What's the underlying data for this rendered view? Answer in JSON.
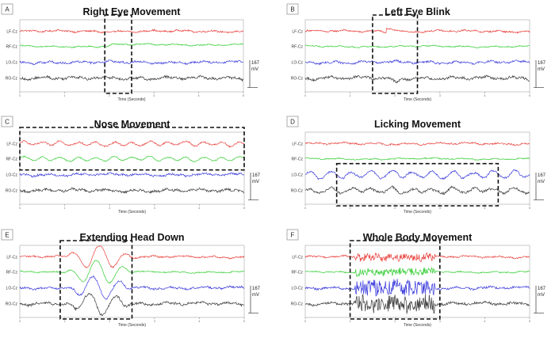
{
  "figure": {
    "panels": [
      {
        "letter": "A",
        "title": "Right Eye Movement",
        "xlabel": "Time (Seconds)"
      },
      {
        "letter": "B",
        "title": "Left Eye Blink",
        "xlabel": "Time (Seconds)"
      },
      {
        "letter": "C",
        "title": "Nose Movement",
        "xlabel": "Time (Seconds)"
      },
      {
        "letter": "D",
        "title": "Licking Movement",
        "xlabel": "Time (Seconds)"
      },
      {
        "letter": "E",
        "title": "Extending Head Down",
        "xlabel": "Time (Seconds)"
      },
      {
        "letter": "F",
        "title": "Whole Body Movement",
        "xlabel": "Time (Seconds)"
      }
    ],
    "scale_bar": {
      "value": "167",
      "unit": "mV"
    }
  },
  "colors": {
    "LF-Cz": "#e8413c",
    "RF-Cz": "#33cc33",
    "LO-Cz": "#3b3bdc",
    "RO-Cz": "#3a3a3a",
    "box": "#111111"
  },
  "chart_data": [
    {
      "panel": "A",
      "type": "line",
      "title": "Right Eye Movement",
      "xlabel": "Time (Seconds)",
      "x_ticks": [
        "0",
        "1",
        "2",
        "3",
        "4",
        "5"
      ],
      "xlim": [
        0,
        5
      ],
      "series": [
        {
          "name": "LF-Cz"
        },
        {
          "name": "RF-Cz"
        },
        {
          "name": "LO-Cz"
        },
        {
          "name": "RO-Cz"
        }
      ],
      "highlight": {
        "x": [
          1.9,
          2.5
        ],
        "channels": [
          "LF-Cz",
          "RO-Cz"
        ]
      },
      "events": [
        {
          "channel": "RF-Cz",
          "kind": "step-up",
          "time": 2.0,
          "amplitude": 0.5
        },
        {
          "channel": "RO-Cz",
          "kind": "spike-up",
          "time": 2.1,
          "amplitude": 0.5
        }
      ]
    },
    {
      "panel": "B",
      "type": "line",
      "title": "Left Eye Blink",
      "xlabel": "Time (Seconds)",
      "x_ticks": [
        "0",
        "1",
        "2",
        "3",
        "4",
        "5"
      ],
      "xlim": [
        0,
        5
      ],
      "series": [
        {
          "name": "LF-Cz"
        },
        {
          "name": "RF-Cz"
        },
        {
          "name": "LO-Cz"
        },
        {
          "name": "RO-Cz"
        }
      ],
      "highlight": {
        "x": [
          1.5,
          2.5
        ],
        "channels": [
          "LF-Cz",
          "RO-Cz"
        ]
      },
      "events": [
        {
          "channel": "LF-Cz",
          "kind": "spike-up-decay",
          "time": 1.8,
          "amplitude": 1.2
        },
        {
          "channel": "RO-Cz",
          "kind": "dip",
          "time": 2.0,
          "amplitude": 1.1
        }
      ]
    },
    {
      "panel": "C",
      "type": "line",
      "title": "Nose Movement",
      "xlabel": "Time (Seconds)",
      "x_ticks": [
        "0",
        "1",
        "2",
        "3",
        "4",
        "5"
      ],
      "xlim": [
        0,
        5
      ],
      "series": [
        {
          "name": "LF-Cz"
        },
        {
          "name": "RF-Cz"
        },
        {
          "name": "LO-Cz"
        },
        {
          "name": "RO-Cz"
        }
      ],
      "highlight": {
        "x": [
          0,
          5
        ],
        "channels": [
          "LF-Cz",
          "RF-Cz"
        ]
      },
      "events": [
        {
          "channel": "LF-Cz",
          "kind": "oscillation",
          "frequency": 2.5,
          "amplitude": 0.5
        },
        {
          "channel": "RF-Cz",
          "kind": "oscillation",
          "frequency": 2.5,
          "amplitude": 0.5
        }
      ]
    },
    {
      "panel": "D",
      "type": "line",
      "title": "Licking Movement",
      "xlabel": "Time (Seconds)",
      "x_ticks": [
        "0",
        "1",
        "2",
        "3",
        "4",
        "5"
      ],
      "xlim": [
        0,
        5
      ],
      "series": [
        {
          "name": "LF-Cz"
        },
        {
          "name": "RF-Cz"
        },
        {
          "name": "LO-Cz"
        },
        {
          "name": "RO-Cz"
        }
      ],
      "highlight": {
        "x": [
          0.7,
          4.3
        ],
        "channels": [
          "LO-Cz",
          "RO-Cz"
        ]
      },
      "events": [
        {
          "channel": "LO-Cz",
          "kind": "oscillation",
          "frequency": 2.2,
          "amplitude": 0.9
        },
        {
          "channel": "RO-Cz",
          "kind": "oscillation",
          "frequency": 2.2,
          "amplitude": 0.6
        }
      ]
    },
    {
      "panel": "E",
      "type": "line",
      "title": "Extending Head Down",
      "xlabel": "Time (Seconds)",
      "x_ticks": [
        "0",
        "1",
        "2",
        "3",
        "4",
        "5"
      ],
      "xlim": [
        0,
        5
      ],
      "series": [
        {
          "name": "LF-Cz"
        },
        {
          "name": "RF-Cz"
        },
        {
          "name": "LO-Cz"
        },
        {
          "name": "RO-Cz"
        }
      ],
      "highlight": {
        "x": [
          0.9,
          2.5
        ],
        "channels": [
          "LF-Cz",
          "RO-Cz"
        ]
      },
      "events": [
        {
          "channel": "all",
          "kind": "large-artifact",
          "time": [
            1.0,
            2.5
          ],
          "amplitude": 3.5
        }
      ]
    },
    {
      "panel": "F",
      "type": "line",
      "title": "Whole Body Movement",
      "xlabel": "Time (Seconds)",
      "x_ticks": [
        "0",
        "1",
        "2",
        "3",
        "4",
        "5"
      ],
      "xlim": [
        0,
        5
      ],
      "series": [
        {
          "name": "LF-Cz"
        },
        {
          "name": "RF-Cz"
        },
        {
          "name": "LO-Cz"
        },
        {
          "name": "RO-Cz"
        }
      ],
      "highlight": {
        "x": [
          1.0,
          3.0
        ],
        "channels": [
          "LF-Cz",
          "RO-Cz"
        ]
      },
      "events": [
        {
          "channel": "all",
          "kind": "high-amplitude-noise",
          "time": [
            1.1,
            2.9
          ],
          "amplitude": 2.0
        }
      ]
    }
  ]
}
